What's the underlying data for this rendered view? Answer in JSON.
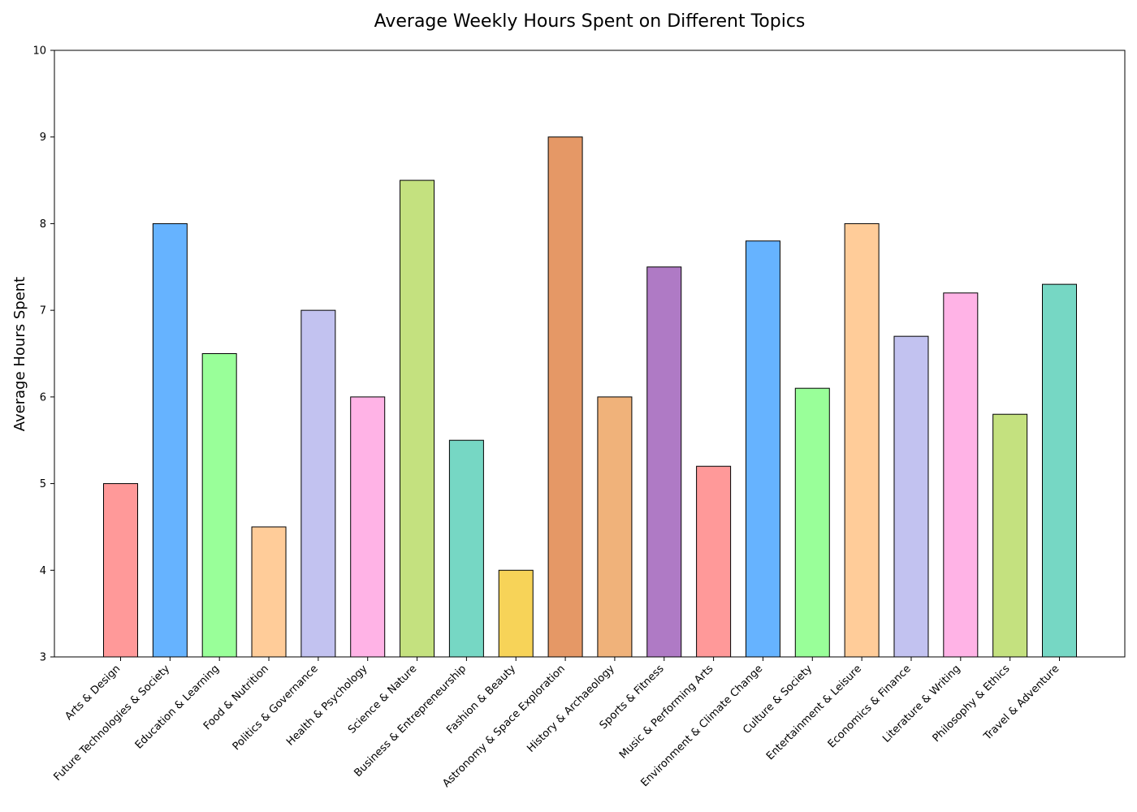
{
  "chart_data": {
    "type": "bar",
    "title": "Average Weekly Hours Spent on Different Topics",
    "xlabel": "",
    "ylabel": "Average Hours Spent",
    "ylim": [
      3,
      10
    ],
    "yticks": [
      3,
      4,
      5,
      6,
      7,
      8,
      9,
      10
    ],
    "grid": false,
    "categories": [
      "Arts & Design",
      "Future Technologies & Society",
      "Education & Learning",
      "Food & Nutrition",
      "Politics & Governance",
      "Health & Psychology",
      "Science & Nature",
      "Business & Entrepreneurship",
      "Fashion & Beauty",
      "Astronomy & Space Exploration",
      "History & Archaeology",
      "Sports & Fitness",
      "Music & Performing Arts",
      "Environment & Climate Change",
      "Culture & Society",
      "Entertainment & Leisure",
      "Economics & Finance",
      "Literature & Writing",
      "Philosophy & Ethics",
      "Travel & Adventure"
    ],
    "values": [
      5.0,
      8.0,
      6.5,
      4.5,
      7.0,
      6.0,
      8.5,
      5.5,
      4.0,
      9.0,
      6.0,
      7.5,
      5.2,
      7.8,
      6.1,
      8.0,
      6.7,
      7.2,
      5.8,
      7.3
    ],
    "colors": [
      "#ff9999",
      "#66b3ff",
      "#99ff99",
      "#ffcc99",
      "#c2c2f0",
      "#ffb3e6",
      "#c4e17f",
      "#76d7c4",
      "#f7d358",
      "#e59866",
      "#f0b27a",
      "#af7ac5",
      "#ff9999",
      "#66b3ff",
      "#99ff99",
      "#ffcc99",
      "#c2c2f0",
      "#ffb3e6",
      "#c4e17f",
      "#76d7c4"
    ]
  }
}
